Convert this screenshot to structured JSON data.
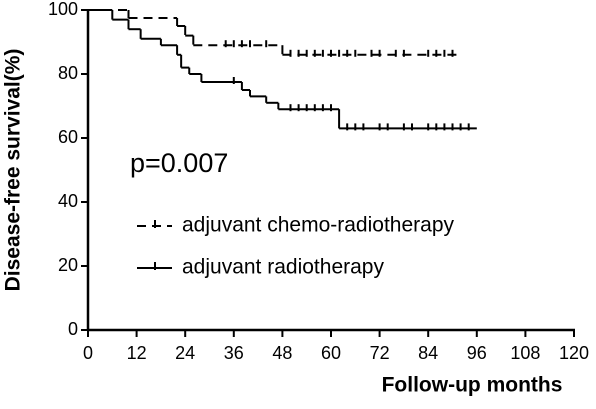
{
  "chart_data": {
    "type": "step",
    "xlabel": "Follow-up months",
    "ylabel": "Disease-free survival(%)",
    "annotation": "p=0.007",
    "xlim": [
      0,
      120
    ],
    "xticks": [
      0,
      12,
      24,
      36,
      48,
      60,
      72,
      84,
      96,
      108,
      120
    ],
    "ylim": [
      0,
      100
    ],
    "yticks": [
      0,
      20,
      40,
      60,
      80,
      100
    ],
    "series": [
      {
        "name": "adjuvant chemo-radiotherapy",
        "color": "#000",
        "dash": "9,6",
        "x": [
          0,
          10,
          22,
          24,
          26,
          48,
          92
        ],
        "values": [
          100,
          97.5,
          95,
          92,
          89,
          86,
          86
        ],
        "censored_x": [
          34,
          36,
          38,
          40,
          44,
          50,
          52,
          54,
          56,
          58,
          60,
          62,
          64,
          66,
          70,
          72,
          76,
          78,
          84,
          86,
          88,
          90
        ]
      },
      {
        "name": "adjuvant radiotherapy",
        "color": "#000",
        "dash": null,
        "x": [
          0,
          6,
          10,
          13,
          18,
          22,
          23,
          25,
          28,
          38,
          40,
          44,
          47,
          62,
          96
        ],
        "values": [
          100,
          97,
          94,
          91,
          89,
          86,
          82,
          80,
          77.5,
          75,
          73,
          71,
          69,
          63,
          63
        ],
        "censored_x": [
          36,
          50,
          52,
          54,
          56,
          58,
          60,
          64,
          66,
          68,
          72,
          74,
          78,
          80,
          84,
          86,
          88,
          90,
          92,
          94
        ]
      }
    ]
  }
}
